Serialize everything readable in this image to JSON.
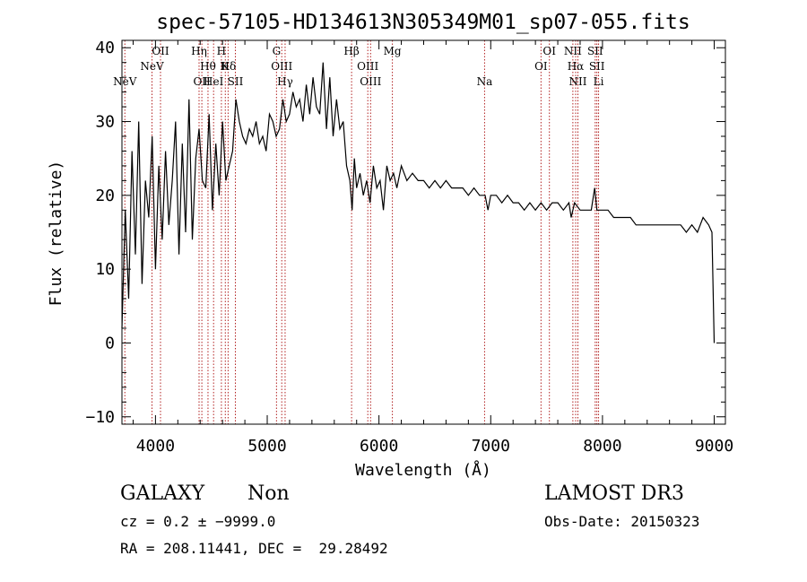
{
  "chart_data": {
    "type": "line",
    "title": "spec-57105-HD134613N305349M01_sp07-055.fits",
    "xlabel": "Wavelength (Å)",
    "ylabel": "Flux (relative)",
    "xlim": [
      3700,
      9100
    ],
    "ylim": [
      -11,
      41
    ],
    "x_ticks": [
      "4000",
      "5000",
      "6000",
      "7000",
      "8000",
      "9000"
    ],
    "y_ticks": [
      "−10",
      "0",
      "10",
      "20",
      "30",
      "40"
    ],
    "x_tick_values": [
      4000,
      5000,
      6000,
      7000,
      8000,
      9000
    ],
    "y_tick_values": [
      -10,
      0,
      10,
      20,
      30,
      40
    ],
    "grid": false,
    "line_color": "#000000",
    "line_marker_color": "#b22222",
    "series": [
      {
        "x": [
          3700,
          3730,
          3760,
          3790,
          3820,
          3850,
          3880,
          3910,
          3940,
          3970,
          4000,
          4030,
          4060,
          4090,
          4120,
          4150,
          4180,
          4210,
          4240,
          4270,
          4300,
          4330,
          4360,
          4390,
          4420,
          4450,
          4480,
          4510,
          4540,
          4570,
          4600,
          4630,
          4660,
          4690,
          4720,
          4750,
          4780,
          4810,
          4840,
          4870,
          4900,
          4930,
          4960,
          4990,
          5020,
          5050,
          5080,
          5110,
          5140,
          5170,
          5200,
          5230,
          5260,
          5290,
          5320,
          5350,
          5380,
          5410,
          5440,
          5470,
          5500,
          5530,
          5560,
          5590,
          5620,
          5650,
          5680,
          5710,
          5740,
          5760,
          5780,
          5800,
          5830,
          5860,
          5890,
          5920,
          5950,
          5980,
          6010,
          6040,
          6070,
          6100,
          6130,
          6160,
          6200,
          6250,
          6300,
          6350,
          6400,
          6450,
          6500,
          6550,
          6600,
          6650,
          6700,
          6750,
          6800,
          6850,
          6900,
          6950,
          6975,
          7000,
          7050,
          7100,
          7150,
          7200,
          7250,
          7300,
          7350,
          7400,
          7450,
          7500,
          7550,
          7600,
          7650,
          7700,
          7720,
          7750,
          7800,
          7850,
          7900,
          7930,
          7950,
          8000,
          8050,
          8100,
          8150,
          8200,
          8250,
          8300,
          8350,
          8400,
          8450,
          8500,
          8550,
          8600,
          8650,
          8700,
          8750,
          8800,
          8850,
          8900,
          8950,
          8980,
          9000
        ],
        "y": [
          2,
          18,
          6,
          26,
          12,
          30,
          8,
          22,
          17,
          28,
          10,
          24,
          14,
          26,
          16,
          22,
          30,
          12,
          27,
          15,
          33,
          14,
          25,
          29,
          22,
          21,
          31,
          18,
          27,
          20,
          30,
          22,
          24,
          26,
          33,
          30,
          28,
          27,
          29,
          28,
          30,
          27,
          28,
          26,
          31,
          30,
          28,
          29,
          33,
          30,
          31,
          34,
          32,
          33,
          30,
          35,
          31,
          36,
          32,
          31,
          38,
          29,
          36,
          28,
          33,
          29,
          30,
          24,
          22,
          18,
          25,
          21,
          23,
          20,
          22,
          19,
          24,
          21,
          22,
          18,
          24,
          22,
          23,
          21,
          24,
          22,
          23,
          22,
          22,
          21,
          22,
          21,
          22,
          21,
          21,
          21,
          20,
          21,
          20,
          20,
          18,
          20,
          20,
          19,
          20,
          19,
          19,
          18,
          19,
          18,
          19,
          18,
          19,
          19,
          18,
          19,
          17,
          19,
          18,
          18,
          18,
          21,
          18,
          18,
          18,
          17,
          17,
          17,
          17,
          16,
          16,
          16,
          16,
          16,
          16,
          16,
          16,
          16,
          15,
          16,
          15,
          17,
          16,
          15,
          0
        ]
      }
    ],
    "lines": [
      {
        "label": "NeV",
        "wavelength": 3726,
        "row": 3
      },
      {
        "label": "NeV",
        "wavelength": 3969,
        "row": 2
      },
      {
        "label": "OII",
        "wavelength": 4045,
        "row": 1
      },
      {
        "label": "Hη",
        "wavelength": 4390,
        "row": 1
      },
      {
        "label": "OII",
        "wavelength": 4415,
        "row": 3
      },
      {
        "label": "Hθ",
        "wavelength": 4470,
        "row": 2
      },
      {
        "label": "HeI",
        "wavelength": 4520,
        "row": 3
      },
      {
        "label": "H",
        "wavelength": 4590,
        "row": 1
      },
      {
        "label": "K",
        "wavelength": 4625,
        "row": 2
      },
      {
        "label": "Hδ",
        "wavelength": 4650,
        "row": 2
      },
      {
        "label": "SII",
        "wavelength": 4715,
        "row": 3
      },
      {
        "label": "G",
        "wavelength": 5083,
        "row": 1
      },
      {
        "label": "OIII",
        "wavelength": 5130,
        "row": 2
      },
      {
        "label": "Hγ",
        "wavelength": 5160,
        "row": 3
      },
      {
        "label": "Hβ",
        "wavelength": 5755,
        "row": 1
      },
      {
        "label": "OIII",
        "wavelength": 5900,
        "row": 2
      },
      {
        "label": "OIII",
        "wavelength": 5925,
        "row": 3
      },
      {
        "label": "Mg",
        "wavelength": 6120,
        "row": 1
      },
      {
        "label": "Na",
        "wavelength": 6945,
        "row": 3
      },
      {
        "label": "OI",
        "wavelength": 7450,
        "row": 2
      },
      {
        "label": "OI",
        "wavelength": 7525,
        "row": 1
      },
      {
        "label": "NII",
        "wavelength": 7735,
        "row": 1
      },
      {
        "label": "Hα",
        "wavelength": 7760,
        "row": 2
      },
      {
        "label": "NII",
        "wavelength": 7780,
        "row": 3
      },
      {
        "label": "SII",
        "wavelength": 7935,
        "row": 1
      },
      {
        "label": "SII",
        "wavelength": 7950,
        "row": 2
      },
      {
        "label": "Li",
        "wavelength": 7965,
        "row": 3
      }
    ]
  },
  "info": {
    "class": "GALAXY",
    "subclass": "Non",
    "survey": "LAMOST DR3",
    "cz": "cz = 0.2 ± −9999.0",
    "obs_date": "Obs-Date: 20150323",
    "coords": "RA = 208.11441, DEC =  29.28492"
  }
}
